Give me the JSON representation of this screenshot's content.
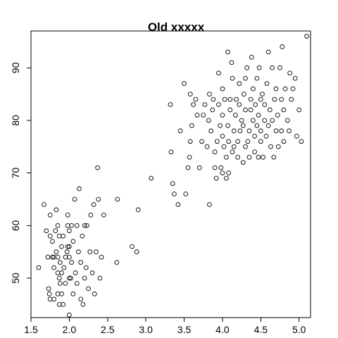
{
  "chart_data": {
    "type": "scatter",
    "title": "Old xxxxx",
    "xlabel": "",
    "ylabel": "",
    "xlim": [
      1.5,
      5.15
    ],
    "ylim": [
      42.5,
      97
    ],
    "x_ticks": [
      1.5,
      2.0,
      2.5,
      3.0,
      3.5,
      4.0,
      4.5,
      5.0
    ],
    "x_tick_labels": [
      "1.5",
      "2.0",
      "2.5",
      "3.0",
      "3.5",
      "4.0",
      "4.5",
      "5.0"
    ],
    "y_ticks": [
      50,
      60,
      70,
      80,
      90
    ],
    "y_tick_labels": [
      "50",
      "60",
      "70",
      "80",
      "90"
    ],
    "grid": false,
    "series": [
      {
        "marker": "open-circle",
        "color": "#000000",
        "points": [
          [
            1.6,
            52
          ],
          [
            1.67,
            64
          ],
          [
            1.7,
            59
          ],
          [
            1.72,
            54
          ],
          [
            1.73,
            48
          ],
          [
            1.74,
            47
          ],
          [
            1.75,
            46
          ],
          [
            1.75,
            58
          ],
          [
            1.75,
            62
          ],
          [
            1.78,
            54
          ],
          [
            1.78,
            57
          ],
          [
            1.8,
            46
          ],
          [
            1.8,
            52
          ],
          [
            1.8,
            54
          ],
          [
            1.82,
            59
          ],
          [
            1.83,
            55
          ],
          [
            1.83,
            63
          ],
          [
            1.85,
            47
          ],
          [
            1.85,
            51
          ],
          [
            1.85,
            54
          ],
          [
            1.85,
            60
          ],
          [
            1.87,
            45
          ],
          [
            1.87,
            50
          ],
          [
            1.87,
            58
          ],
          [
            1.88,
            49
          ],
          [
            1.88,
            53
          ],
          [
            1.9,
            47
          ],
          [
            1.9,
            56
          ],
          [
            1.9,
            51
          ],
          [
            1.92,
            45
          ],
          [
            1.92,
            58
          ],
          [
            1.93,
            52
          ],
          [
            1.95,
            49
          ],
          [
            1.95,
            54
          ],
          [
            1.97,
            55
          ],
          [
            1.98,
            56
          ],
          [
            1.98,
            60
          ],
          [
            1.98,
            62
          ],
          [
            2.0,
            43
          ],
          [
            2.0,
            50
          ],
          [
            2.0,
            54
          ],
          [
            2.0,
            56
          ],
          [
            2.0,
            59
          ],
          [
            2.02,
            50
          ],
          [
            2.03,
            53
          ],
          [
            2.03,
            60
          ],
          [
            2.05,
            47
          ],
          [
            2.05,
            57
          ],
          [
            2.07,
            65
          ],
          [
            2.08,
            51
          ],
          [
            2.1,
            49
          ],
          [
            2.1,
            60
          ],
          [
            2.12,
            55
          ],
          [
            2.13,
            67
          ],
          [
            2.15,
            46
          ],
          [
            2.15,
            53
          ],
          [
            2.17,
            58
          ],
          [
            2.18,
            45
          ],
          [
            2.2,
            50
          ],
          [
            2.2,
            60
          ],
          [
            2.22,
            52
          ],
          [
            2.23,
            60
          ],
          [
            2.25,
            48
          ],
          [
            2.27,
            55
          ],
          [
            2.28,
            62
          ],
          [
            2.3,
            51
          ],
          [
            2.32,
            64
          ],
          [
            2.33,
            47
          ],
          [
            2.35,
            55
          ],
          [
            2.37,
            71
          ],
          [
            2.38,
            65
          ],
          [
            2.4,
            50
          ],
          [
            2.42,
            54
          ],
          [
            2.45,
            62
          ],
          [
            2.62,
            53
          ],
          [
            2.63,
            65
          ],
          [
            2.82,
            56
          ],
          [
            2.88,
            55
          ],
          [
            2.9,
            63
          ],
          [
            3.07,
            69
          ],
          [
            3.32,
            83
          ],
          [
            3.33,
            74
          ],
          [
            3.35,
            68
          ],
          [
            3.37,
            66
          ],
          [
            3.42,
            64
          ],
          [
            3.45,
            78
          ],
          [
            3.5,
            87
          ],
          [
            3.52,
            66
          ],
          [
            3.55,
            71
          ],
          [
            3.57,
            73
          ],
          [
            3.58,
            85
          ],
          [
            3.58,
            76
          ],
          [
            3.6,
            79
          ],
          [
            3.62,
            83
          ],
          [
            3.65,
            84
          ],
          [
            3.67,
            81
          ],
          [
            3.7,
            71
          ],
          [
            3.73,
            76
          ],
          [
            3.75,
            81
          ],
          [
            3.77,
            83
          ],
          [
            3.8,
            75
          ],
          [
            3.82,
            80
          ],
          [
            3.83,
            64
          ],
          [
            3.83,
            85
          ],
          [
            3.85,
            78
          ],
          [
            3.87,
            82
          ],
          [
            3.88,
            84
          ],
          [
            3.9,
            71
          ],
          [
            3.9,
            74
          ],
          [
            3.92,
            69
          ],
          [
            3.93,
            76
          ],
          [
            3.95,
            83
          ],
          [
            3.95,
            89
          ],
          [
            3.97,
            79
          ],
          [
            3.98,
            71
          ],
          [
            4.0,
            70
          ],
          [
            4.0,
            77
          ],
          [
            4.0,
            81
          ],
          [
            4.0,
            86
          ],
          [
            4.02,
            75
          ],
          [
            4.03,
            84
          ],
          [
            4.05,
            69
          ],
          [
            4.05,
            73
          ],
          [
            4.07,
            79
          ],
          [
            4.07,
            93
          ],
          [
            4.08,
            70
          ],
          [
            4.08,
            76
          ],
          [
            4.1,
            82
          ],
          [
            4.1,
            84
          ],
          [
            4.12,
            91
          ],
          [
            4.13,
            74
          ],
          [
            4.13,
            88
          ],
          [
            4.15,
            75
          ],
          [
            4.15,
            78
          ],
          [
            4.17,
            81
          ],
          [
            4.18,
            84
          ],
          [
            4.2,
            73
          ],
          [
            4.2,
            76
          ],
          [
            4.22,
            83
          ],
          [
            4.22,
            87
          ],
          [
            4.23,
            78
          ],
          [
            4.25,
            80
          ],
          [
            4.27,
            72
          ],
          [
            4.27,
            79
          ],
          [
            4.28,
            85
          ],
          [
            4.3,
            75
          ],
          [
            4.3,
            82
          ],
          [
            4.3,
            88
          ],
          [
            4.32,
            90
          ],
          [
            4.33,
            76
          ],
          [
            4.35,
            73
          ],
          [
            4.35,
            78
          ],
          [
            4.37,
            82
          ],
          [
            4.37,
            84
          ],
          [
            4.38,
            92
          ],
          [
            4.4,
            80
          ],
          [
            4.4,
            86
          ],
          [
            4.42,
            74
          ],
          [
            4.42,
            77
          ],
          [
            4.43,
            83
          ],
          [
            4.45,
            79
          ],
          [
            4.45,
            88
          ],
          [
            4.47,
            73
          ],
          [
            4.47,
            81
          ],
          [
            4.48,
            90
          ],
          [
            4.5,
            76
          ],
          [
            4.5,
            78
          ],
          [
            4.5,
            84
          ],
          [
            4.52,
            85
          ],
          [
            4.53,
            73
          ],
          [
            4.55,
            80
          ],
          [
            4.55,
            83
          ],
          [
            4.57,
            77
          ],
          [
            4.58,
            87
          ],
          [
            4.6,
            79
          ],
          [
            4.6,
            93
          ],
          [
            4.62,
            82
          ],
          [
            4.63,
            75
          ],
          [
            4.65,
            80
          ],
          [
            4.65,
            90
          ],
          [
            4.67,
            73
          ],
          [
            4.68,
            84
          ],
          [
            4.7,
            78
          ],
          [
            4.7,
            86
          ],
          [
            4.72,
            81
          ],
          [
            4.73,
            75
          ],
          [
            4.75,
            90
          ],
          [
            4.77,
            78
          ],
          [
            4.77,
            84
          ],
          [
            4.78,
            94
          ],
          [
            4.8,
            76
          ],
          [
            4.8,
            82
          ],
          [
            4.82,
            86
          ],
          [
            4.85,
            80
          ],
          [
            4.87,
            78
          ],
          [
            4.88,
            89
          ],
          [
            4.9,
            84
          ],
          [
            4.92,
            86
          ],
          [
            4.95,
            88
          ],
          [
            4.97,
            77
          ],
          [
            5.0,
            82
          ],
          [
            5.03,
            76
          ],
          [
            5.1,
            96
          ]
        ]
      }
    ]
  }
}
